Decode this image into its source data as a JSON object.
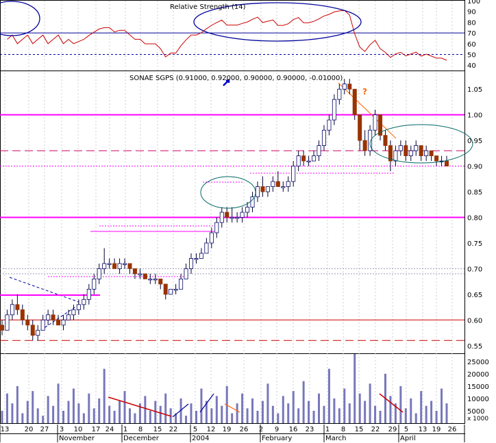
{
  "chart_data": [
    {
      "panel": "rsi",
      "type": "line",
      "title": "Relative Strength (14)",
      "ylim": [
        35,
        100
      ],
      "yticks": [
        40,
        50,
        60,
        70,
        80,
        90,
        100
      ],
      "reference_lines": [
        70,
        50
      ],
      "line_color": "#cc0000",
      "annotation_color": "#000099"
    },
    {
      "panel": "price",
      "type": "candlestick",
      "title": "SONAE SGPS (0.91000, 0.92000, 0.90000, 0.90000, -0.01000)",
      "ylim": [
        0.535,
        1.085
      ],
      "yticks": [
        0.55,
        0.6,
        0.65,
        0.7,
        0.75,
        0.8,
        0.85,
        0.9,
        0.95,
        1.0,
        1.05
      ],
      "up_color": "#ffffff",
      "down_color": "#993300",
      "candles": [
        [
          0.59,
          0.6,
          0.57,
          0.58
        ],
        [
          0.58,
          0.62,
          0.58,
          0.61
        ],
        [
          0.61,
          0.64,
          0.6,
          0.63
        ],
        [
          0.63,
          0.65,
          0.61,
          0.62
        ],
        [
          0.62,
          0.63,
          0.59,
          0.6
        ],
        [
          0.6,
          0.61,
          0.58,
          0.59
        ],
        [
          0.59,
          0.6,
          0.56,
          0.57
        ],
        [
          0.57,
          0.59,
          0.56,
          0.58
        ],
        [
          0.58,
          0.61,
          0.58,
          0.6
        ],
        [
          0.6,
          0.62,
          0.59,
          0.61
        ],
        [
          0.61,
          0.62,
          0.59,
          0.6
        ],
        [
          0.6,
          0.61,
          0.59,
          0.59
        ],
        [
          0.59,
          0.61,
          0.58,
          0.6
        ],
        [
          0.6,
          0.62,
          0.6,
          0.61
        ],
        [
          0.61,
          0.63,
          0.6,
          0.62
        ],
        [
          0.62,
          0.64,
          0.61,
          0.63
        ],
        [
          0.63,
          0.65,
          0.62,
          0.64
        ],
        [
          0.64,
          0.67,
          0.63,
          0.66
        ],
        [
          0.66,
          0.69,
          0.65,
          0.68
        ],
        [
          0.68,
          0.71,
          0.67,
          0.7
        ],
        [
          0.7,
          0.74,
          0.69,
          0.71
        ],
        [
          0.71,
          0.72,
          0.7,
          0.71
        ],
        [
          0.71,
          0.72,
          0.7,
          0.7
        ],
        [
          0.7,
          0.72,
          0.69,
          0.71
        ],
        [
          0.71,
          0.72,
          0.7,
          0.71
        ],
        [
          0.71,
          0.71,
          0.69,
          0.7
        ],
        [
          0.7,
          0.7,
          0.68,
          0.69
        ],
        [
          0.69,
          0.7,
          0.68,
          0.69
        ],
        [
          0.69,
          0.69,
          0.68,
          0.68
        ],
        [
          0.68,
          0.69,
          0.67,
          0.68
        ],
        [
          0.68,
          0.69,
          0.67,
          0.68
        ],
        [
          0.68,
          0.68,
          0.66,
          0.67
        ],
        [
          0.67,
          0.67,
          0.64,
          0.65
        ],
        [
          0.65,
          0.66,
          0.65,
          0.66
        ],
        [
          0.66,
          0.67,
          0.65,
          0.66
        ],
        [
          0.66,
          0.69,
          0.66,
          0.68
        ],
        [
          0.68,
          0.71,
          0.68,
          0.7
        ],
        [
          0.7,
          0.73,
          0.69,
          0.72
        ],
        [
          0.72,
          0.73,
          0.71,
          0.72
        ],
        [
          0.72,
          0.74,
          0.72,
          0.73
        ],
        [
          0.73,
          0.76,
          0.73,
          0.75
        ],
        [
          0.75,
          0.78,
          0.74,
          0.77
        ],
        [
          0.77,
          0.8,
          0.76,
          0.79
        ],
        [
          0.79,
          0.82,
          0.78,
          0.81
        ],
        [
          0.81,
          0.82,
          0.79,
          0.8
        ],
        [
          0.8,
          0.82,
          0.79,
          0.8
        ],
        [
          0.8,
          0.81,
          0.79,
          0.8
        ],
        [
          0.8,
          0.82,
          0.79,
          0.81
        ],
        [
          0.81,
          0.83,
          0.8,
          0.82
        ],
        [
          0.82,
          0.85,
          0.81,
          0.84
        ],
        [
          0.84,
          0.87,
          0.83,
          0.86
        ],
        [
          0.86,
          0.88,
          0.84,
          0.85
        ],
        [
          0.85,
          0.86,
          0.84,
          0.86
        ],
        [
          0.86,
          0.88,
          0.85,
          0.87
        ],
        [
          0.87,
          0.89,
          0.86,
          0.86
        ],
        [
          0.86,
          0.87,
          0.85,
          0.86
        ],
        [
          0.86,
          0.88,
          0.85,
          0.87
        ],
        [
          0.87,
          0.91,
          0.86,
          0.9
        ],
        [
          0.9,
          0.93,
          0.89,
          0.92
        ],
        [
          0.92,
          0.93,
          0.9,
          0.91
        ],
        [
          0.91,
          0.92,
          0.9,
          0.91
        ],
        [
          0.91,
          0.93,
          0.91,
          0.92
        ],
        [
          0.92,
          0.95,
          0.91,
          0.94
        ],
        [
          0.94,
          0.98,
          0.93,
          0.97
        ],
        [
          0.97,
          1.0,
          0.96,
          0.99
        ],
        [
          0.99,
          1.04,
          0.98,
          1.03
        ],
        [
          1.03,
          1.06,
          1.02,
          1.05
        ],
        [
          1.05,
          1.07,
          1.04,
          1.06
        ],
        [
          1.06,
          1.07,
          1.04,
          1.05
        ],
        [
          1.05,
          1.05,
          0.99,
          1.0
        ],
        [
          1.0,
          1.0,
          0.93,
          0.95
        ],
        [
          0.95,
          0.97,
          0.92,
          0.93
        ],
        [
          0.93,
          0.98,
          0.92,
          0.97
        ],
        [
          0.97,
          1.01,
          0.96,
          1.0
        ],
        [
          1.0,
          1.0,
          0.95,
          0.96
        ],
        [
          0.96,
          0.97,
          0.93,
          0.94
        ],
        [
          0.94,
          0.95,
          0.89,
          0.91
        ],
        [
          0.91,
          0.94,
          0.9,
          0.93
        ],
        [
          0.93,
          0.95,
          0.92,
          0.94
        ],
        [
          0.94,
          0.95,
          0.91,
          0.92
        ],
        [
          0.92,
          0.94,
          0.91,
          0.93
        ],
        [
          0.93,
          0.95,
          0.92,
          0.94
        ],
        [
          0.94,
          0.94,
          0.91,
          0.92
        ],
        [
          0.92,
          0.94,
          0.91,
          0.93
        ],
        [
          0.93,
          0.93,
          0.91,
          0.92
        ],
        [
          0.92,
          0.92,
          0.9,
          0.91
        ],
        [
          0.91,
          0.92,
          0.9,
          0.91
        ],
        [
          0.91,
          0.92,
          0.9,
          0.9
        ]
      ],
      "levels": [
        {
          "value": 1.0,
          "color": "#ff00ff",
          "style": "solid",
          "width": 2
        },
        {
          "value": 0.8,
          "color": "#ff00ff",
          "style": "solid",
          "width": 2
        },
        {
          "value": 0.93,
          "color": "#cc0066",
          "style": "long-dash",
          "width": 1
        },
        {
          "value": 0.9,
          "color": "#ff00ff",
          "style": "dotted",
          "width": 1
        },
        {
          "value": 0.7,
          "color": "#9999bb",
          "style": "dotted",
          "width": 1
        },
        {
          "value": 0.69,
          "color": "#9999bb",
          "style": "dotted",
          "width": 1
        },
        {
          "value": 0.6,
          "color": "#cc0000",
          "style": "solid",
          "width": 1
        },
        {
          "value": 0.56,
          "color": "#cc0000",
          "style": "long-dash",
          "width": 1
        }
      ],
      "annotations": [
        "?"
      ]
    },
    {
      "panel": "volume",
      "type": "bar",
      "ylabel": "x 1000",
      "ylim": [
        0,
        28000
      ],
      "yticks": [
        5000,
        10000,
        15000,
        20000,
        25000
      ],
      "bar_color": "#7777bb",
      "values": [
        5000,
        12000,
        8000,
        15000,
        4000,
        9000,
        13000,
        6000,
        3000,
        11000,
        7000,
        16000,
        5000,
        9000,
        14000,
        8000,
        4000,
        12000,
        6000,
        10000,
        22000,
        7000,
        5000,
        9000,
        13000,
        6000,
        4000,
        8000,
        11000,
        5000,
        9000,
        7000,
        12000,
        6000,
        4000,
        10000,
        3000,
        8000,
        5000,
        14000,
        9000,
        6000,
        11000,
        7000,
        15000,
        4000,
        8000,
        12000,
        6000,
        10000,
        5000,
        9000,
        16000,
        7000,
        4000,
        11000,
        8000,
        13000,
        6000,
        17000,
        9000,
        5000,
        12000,
        7000,
        22000,
        10000,
        6000,
        14000,
        8000,
        28000,
        12000,
        9000,
        16000,
        7000,
        5000,
        20000,
        11000,
        8000,
        15000,
        6000,
        10000,
        4000,
        13000,
        7000,
        9000,
        5000,
        14000,
        8000
      ]
    }
  ],
  "x_labels": {
    "days": [
      "13",
      "20",
      "27",
      "3",
      "10",
      "17",
      "24",
      "1",
      "8",
      "15",
      "22",
      "5",
      "12",
      "19",
      "26",
      "2",
      "9",
      "16",
      "23",
      "1",
      "8",
      "15",
      "22",
      "29",
      "5",
      "13",
      "19",
      "26"
    ],
    "months": [
      "November",
      "December",
      "2004",
      "February",
      "March",
      "April"
    ]
  }
}
